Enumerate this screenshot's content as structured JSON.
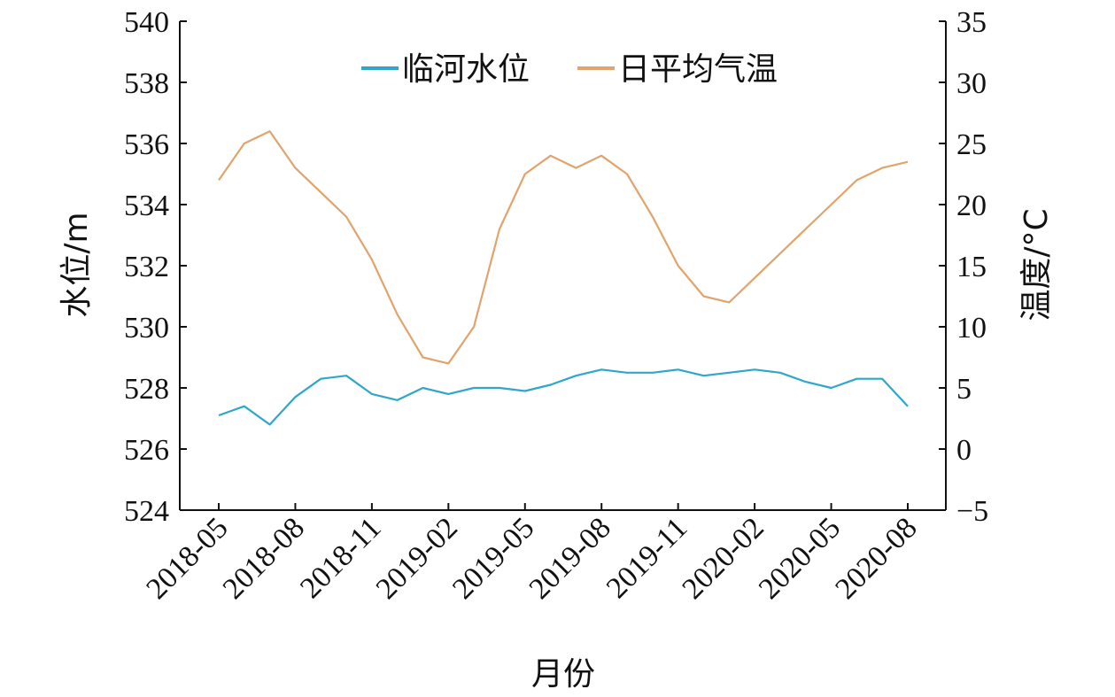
{
  "chart_data": {
    "type": "line",
    "xlabel": "月份",
    "ylabel_left": "水位/m",
    "ylabel_right": "温度/°C",
    "y_left_ticks": [
      "524",
      "526",
      "528",
      "530",
      "532",
      "534",
      "536",
      "538",
      "540"
    ],
    "y_left_lim": [
      524,
      540
    ],
    "y_right_ticks": [
      "−5",
      "0",
      "5",
      "10",
      "15",
      "20",
      "25",
      "30",
      "35"
    ],
    "y_right_lim": [
      -5,
      35
    ],
    "x_ticks": [
      "2018-05",
      "2018-08",
      "2018-11",
      "2019-02",
      "2019-05",
      "2019-08",
      "2019-11",
      "2020-02",
      "2020-05",
      "2020-08"
    ],
    "x_lim": [
      "2018-05",
      "2020-08"
    ],
    "legend_position": "top-center",
    "grid": false,
    "series": [
      {
        "name": "临河水位",
        "axis": "left",
        "color": "#2ea7c9",
        "x": [
          "2018-05",
          "2018-06",
          "2018-07",
          "2018-08",
          "2018-09",
          "2018-10",
          "2018-11",
          "2018-12",
          "2019-01",
          "2019-02",
          "2019-03",
          "2019-04",
          "2019-05",
          "2019-06",
          "2019-07",
          "2019-08",
          "2019-09",
          "2019-10",
          "2019-11",
          "2019-12",
          "2020-01",
          "2020-02",
          "2020-03",
          "2020-04",
          "2020-05",
          "2020-06",
          "2020-07",
          "2020-08"
        ],
        "values": [
          527.1,
          527.4,
          526.8,
          527.7,
          528.3,
          528.4,
          527.8,
          527.6,
          528.0,
          527.8,
          528.0,
          528.0,
          527.9,
          528.1,
          528.4,
          528.6,
          528.5,
          528.5,
          528.6,
          528.4,
          528.5,
          528.6,
          528.5,
          528.2,
          528.0,
          528.3,
          528.3,
          527.4
        ]
      },
      {
        "name": "日平均气温",
        "axis": "right",
        "color": "#e0a46c",
        "x": [
          "2018-05",
          "2018-06",
          "2018-07",
          "2018-08",
          "2018-09",
          "2018-10",
          "2018-11",
          "2018-12",
          "2019-01",
          "2019-02",
          "2019-03",
          "2019-04",
          "2019-05",
          "2019-06",
          "2019-07",
          "2019-08",
          "2019-09",
          "2019-10",
          "2019-11",
          "2019-12",
          "2020-01",
          "2020-02",
          "2020-03",
          "2020-04",
          "2020-05",
          "2020-06",
          "2020-07",
          "2020-08"
        ],
        "values": [
          22.0,
          25.0,
          26.0,
          23.0,
          21.0,
          19.0,
          15.5,
          11.0,
          7.5,
          7.0,
          10.0,
          18.0,
          22.5,
          24.0,
          23.0,
          24.0,
          22.5,
          19.0,
          15.0,
          12.5,
          12.0,
          14.0,
          16.0,
          18.0,
          20.0,
          22.0,
          23.0,
          23.5
        ]
      }
    ]
  }
}
